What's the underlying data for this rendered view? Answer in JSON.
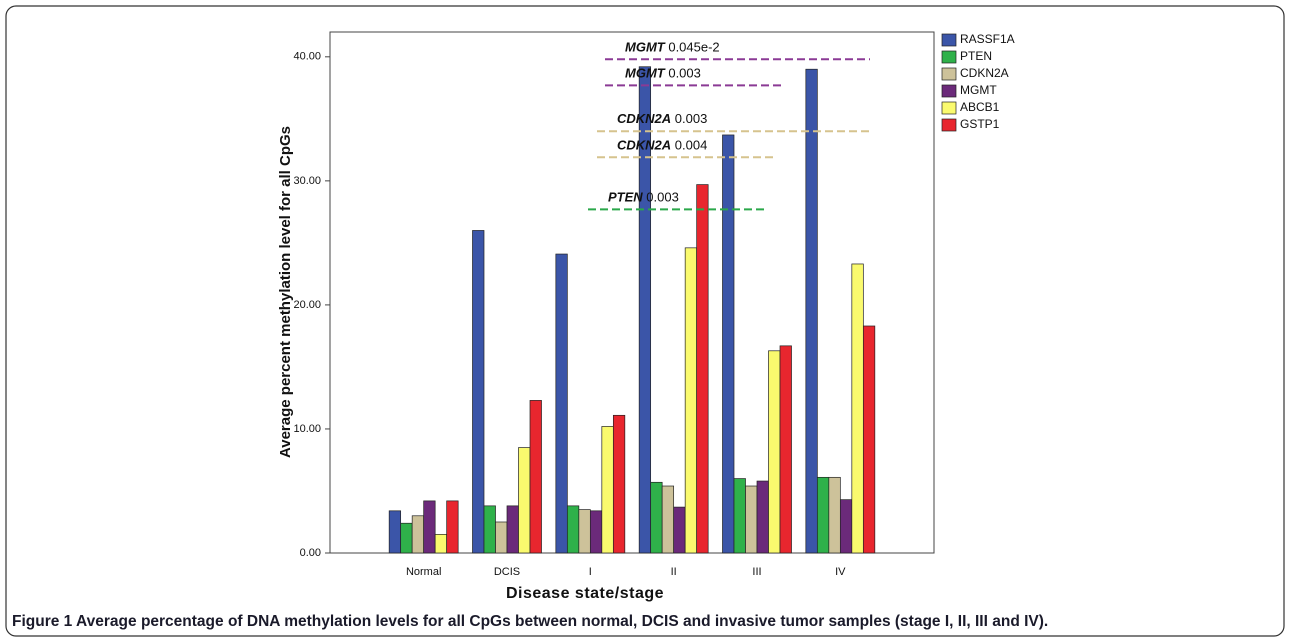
{
  "chart_data": {
    "type": "bar",
    "x_label": "Disease state/stage",
    "y_label": "Average percent methylation level for all CpGs",
    "categories": [
      "Normal",
      "DCIS",
      "I",
      "II",
      "III",
      "IV"
    ],
    "series": [
      {
        "name": "RASSF1A",
        "color": "#3b55a8",
        "values": [
          3.4,
          26.0,
          24.1,
          39.2,
          33.7,
          39.0
        ]
      },
      {
        "name": "PTEN",
        "color": "#2fb14a",
        "values": [
          2.4,
          3.8,
          3.8,
          5.7,
          6.0,
          6.1
        ]
      },
      {
        "name": "CDKN2A",
        "color": "#cdc29a",
        "values": [
          3.0,
          2.5,
          3.5,
          5.4,
          5.4,
          6.1
        ]
      },
      {
        "name": "MGMT",
        "color": "#6b2a7a",
        "values": [
          4.2,
          3.8,
          3.4,
          3.7,
          5.8,
          4.3
        ]
      },
      {
        "name": "ABCB1",
        "color": "#fafa6e",
        "values": [
          1.5,
          8.5,
          10.2,
          24.6,
          16.3,
          23.3
        ]
      },
      {
        "name": "GSTP1",
        "color": "#e8262e",
        "values": [
          4.2,
          12.3,
          11.1,
          29.7,
          16.7,
          18.3
        ]
      }
    ],
    "ylim": [
      0,
      42
    ],
    "yticks": [
      {
        "value": 0,
        "label": "0.00"
      },
      {
        "value": 10,
        "label": "10.00"
      },
      {
        "value": 20,
        "label": "20.00"
      },
      {
        "value": 30,
        "label": "30.00"
      },
      {
        "value": 40,
        "label": "40.00"
      }
    ],
    "legend": "right",
    "annotations": [
      {
        "gene": "MGMT",
        "p": "0.045e-2",
        "y": 39.8,
        "color": "#8b3a95"
      },
      {
        "gene": "MGMT",
        "p": "0.003",
        "y": 37.7,
        "color": "#8b3a95"
      },
      {
        "gene": "CDKN2A",
        "p": "0.003",
        "y": 34.0,
        "color": "#d6c38e"
      },
      {
        "gene": "CDKN2A",
        "p": "0.004",
        "y": 31.9,
        "color": "#d6c38e"
      },
      {
        "gene": "PTEN",
        "p": "0.003",
        "y": 27.7,
        "color": "#2aa84a"
      }
    ]
  },
  "caption": {
    "label": "Figure 1",
    "text": "Average percentage of DNA methylation levels for all CpGs between normal, DCIS and invasive tumor samples (stage I, II, III and IV)."
  }
}
